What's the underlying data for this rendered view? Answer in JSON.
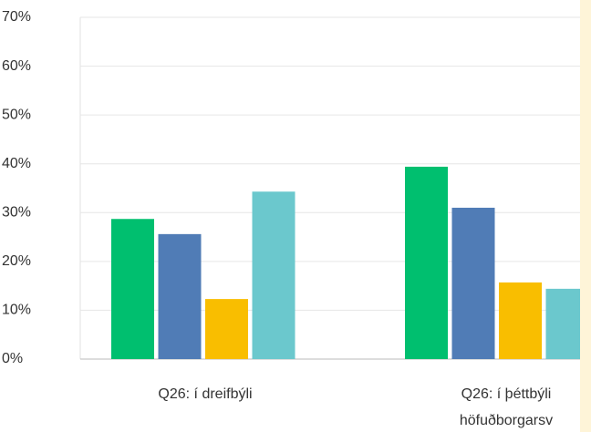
{
  "chart_data": {
    "type": "bar",
    "categories": [
      "Q26: í dreifbýli",
      "Q26: í þéttbýli höfuðborgarsv"
    ],
    "series": [
      {
        "color": "#00bf6f",
        "values": [
          28.7,
          39.4
        ]
      },
      {
        "color": "#507cb6",
        "values": [
          25.6,
          31.0
        ]
      },
      {
        "color": "#f9be00",
        "values": [
          12.3,
          15.7
        ]
      },
      {
        "color": "#6bc8cd",
        "values": [
          34.3,
          14.4
        ]
      }
    ],
    "ylim": [
      0,
      70
    ],
    "yticks": [
      {
        "value": 0,
        "label": "0%"
      },
      {
        "value": 10,
        "label": "10%"
      },
      {
        "value": 20,
        "label": "20%"
      },
      {
        "value": 30,
        "label": "30%"
      },
      {
        "value": 40,
        "label": "40%"
      },
      {
        "value": 50,
        "label": "50%"
      },
      {
        "value": 60,
        "label": "60%"
      },
      {
        "value": 70,
        "label": "70%"
      }
    ],
    "grid": true
  }
}
